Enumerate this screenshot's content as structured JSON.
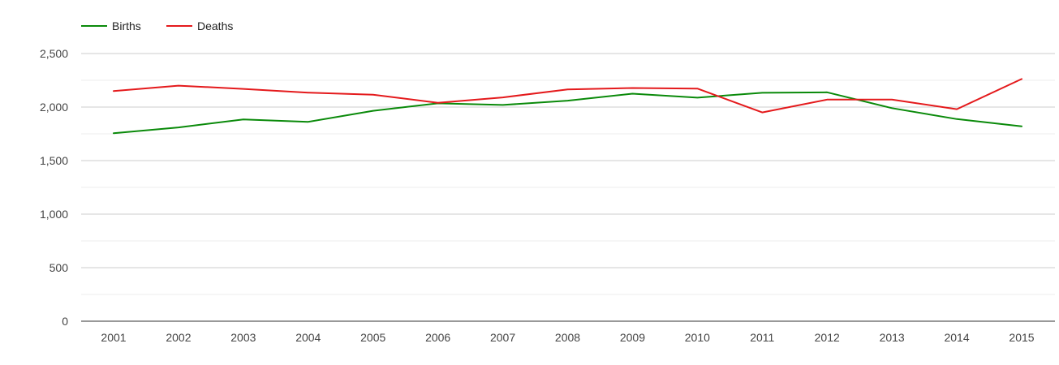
{
  "chart_data": {
    "type": "line",
    "title": "",
    "xlabel": "",
    "ylabel": "",
    "categories": [
      "2001",
      "2002",
      "2003",
      "2004",
      "2005",
      "2006",
      "2007",
      "2008",
      "2009",
      "2010",
      "2011",
      "2012",
      "2013",
      "2014",
      "2015"
    ],
    "ylim": [
      0,
      2500
    ],
    "yticks": [
      0,
      500,
      1000,
      1500,
      2000,
      2500
    ],
    "ytick_labels": [
      "0",
      "500",
      "1,000",
      "1,500",
      "2,000",
      "2,500"
    ],
    "minor_gridlines": true,
    "legend_position": "top-left",
    "series": [
      {
        "name": "Births",
        "color": "#0a8a0a",
        "values": [
          1755,
          1810,
          1885,
          1862,
          1965,
          2035,
          2020,
          2060,
          2125,
          2088,
          2133,
          2138,
          1990,
          1888,
          1820
        ]
      },
      {
        "name": "Deaths",
        "color": "#e41a1c",
        "values": [
          2150,
          2200,
          2170,
          2135,
          2115,
          2040,
          2090,
          2165,
          2178,
          2173,
          1950,
          2070,
          2070,
          1980,
          2262
        ]
      }
    ]
  }
}
